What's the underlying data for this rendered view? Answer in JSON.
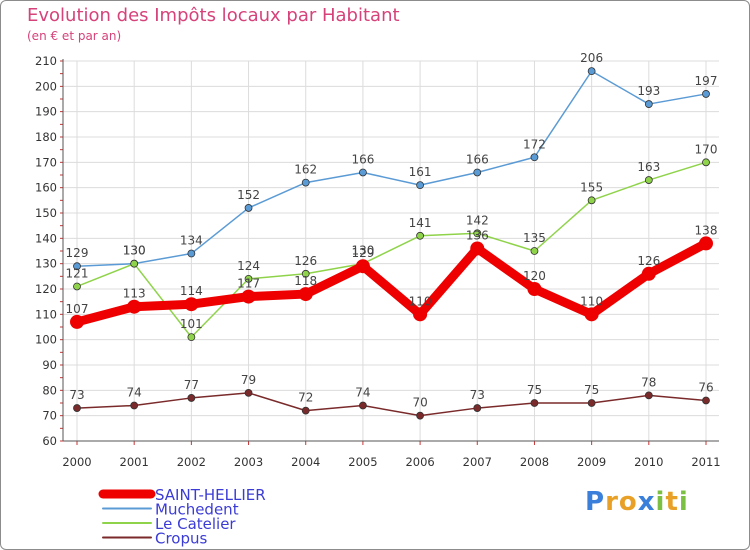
{
  "chart_data": {
    "type": "line",
    "title": "Evolution des Impôts locaux par Habitant",
    "subtitle": "(en € et par an)",
    "xlabel": "",
    "ylabel": "",
    "categories": [
      "2000",
      "2001",
      "2002",
      "2003",
      "2004",
      "2005",
      "2006",
      "2007",
      "2008",
      "2009",
      "2010",
      "2011"
    ],
    "ylim": [
      60,
      210
    ],
    "yticks": [
      60,
      70,
      80,
      90,
      100,
      110,
      120,
      130,
      140,
      150,
      160,
      170,
      180,
      190,
      200,
      210
    ],
    "grid": true,
    "legend_position": "bottom-left",
    "series": [
      {
        "name": "Muchedent",
        "color": "#5b9bd5",
        "values": [
          129,
          130,
          134,
          152,
          162,
          166,
          161,
          166,
          172,
          206,
          193,
          197
        ]
      },
      {
        "name": "Le Catelier",
        "color": "#8fd34a",
        "values": [
          121,
          130,
          101,
          124,
          126,
          130,
          141,
          142,
          135,
          155,
          163,
          170
        ]
      },
      {
        "name": "Cropus",
        "color": "#7a2a2a",
        "values": [
          73,
          74,
          77,
          79,
          72,
          74,
          70,
          73,
          75,
          75,
          78,
          76
        ]
      },
      {
        "name": "SAINT-HELLIER",
        "color": "#ee0000",
        "values": [
          107,
          113,
          114,
          117,
          118,
          129,
          110,
          136,
          120,
          110,
          126,
          138
        ]
      }
    ]
  },
  "legend": {
    "items": [
      {
        "name": "SAINT-HELLIER",
        "color": "#ee0000"
      },
      {
        "name": "Muchedent",
        "color": "#5b9bd5"
      },
      {
        "name": "Le Catelier",
        "color": "#8fd34a"
      },
      {
        "name": "Cropus",
        "color": "#7a2a2a"
      }
    ]
  },
  "logo": {
    "letters": [
      "P",
      "r",
      "o",
      "x",
      "i",
      "t",
      "i"
    ],
    "colors": [
      "#3a7fd9",
      "#e8a126",
      "#e8a126",
      "#3a7fd9",
      "#7bc043",
      "#e8a126",
      "#7bc043"
    ]
  }
}
